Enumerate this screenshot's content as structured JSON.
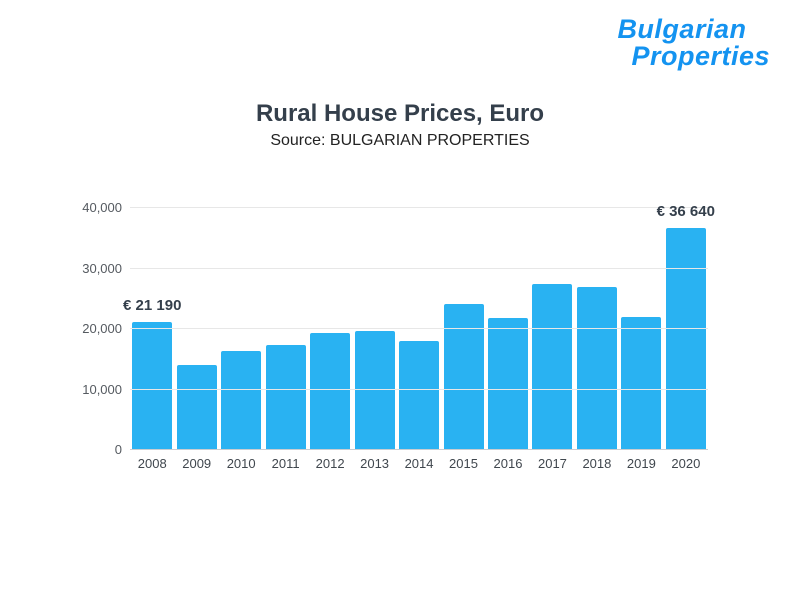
{
  "logo": {
    "line1": "Bulgarian",
    "line2": "Properties",
    "color": "#1493f0"
  },
  "header": {
    "title": "Rural House Prices, Euro",
    "subtitle": "Source: BULGARIAN PROPERTIES"
  },
  "chart_data": {
    "type": "bar",
    "title": "Rural House Prices, Euro",
    "subtitle": "Source: BULGARIAN PROPERTIES",
    "categories": [
      "2008",
      "2009",
      "2010",
      "2011",
      "2012",
      "2013",
      "2014",
      "2015",
      "2016",
      "2017",
      "2018",
      "2019",
      "2020"
    ],
    "values": [
      21190,
      14000,
      16400,
      17400,
      19300,
      19700,
      18000,
      24100,
      21800,
      27500,
      26900,
      22000,
      36640
    ],
    "bar_color": "#29b2f2",
    "ylim": [
      0,
      40000
    ],
    "yticks": [
      0,
      10000,
      20000,
      30000,
      40000
    ],
    "ytick_labels": [
      "0",
      "10,000",
      "20,000",
      "30,000",
      "40,000"
    ],
    "grid": true,
    "legend": false,
    "annotations": [
      {
        "index": 0,
        "label": "€ 21 190"
      },
      {
        "index": 12,
        "label": "€ 36 640"
      }
    ]
  }
}
